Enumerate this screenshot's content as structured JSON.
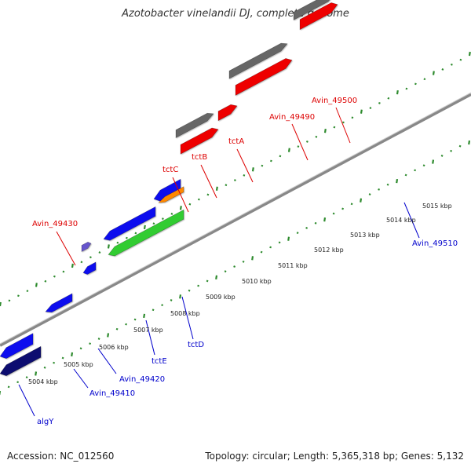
{
  "title": "Azotobacter vinelandii DJ, complete genome",
  "footer": {
    "accession": "Accession: NC_012560",
    "summary": "Topology: circular; Length: 5,365,318 bp; Genes: 5,132"
  },
  "colors": {
    "backbone": "#888888",
    "tick": "#2e8b2e",
    "label_red": "#dd0000",
    "label_blue": "#0000cc",
    "coord_text": "#222222"
  },
  "coordinate_labels": [
    "5004 kbp",
    "5005 kbp",
    "5006 kbp",
    "5007 kbp",
    "5008 kbp",
    "5009 kbp",
    "5010 kbp",
    "5011 kbp",
    "5012 kbp",
    "5013 kbp",
    "5014 kbp",
    "5015 kbp"
  ],
  "gene_labels": [
    {
      "id": "algY",
      "text": "algY",
      "color": "blue"
    },
    {
      "id": "Avin_49410",
      "text": "Avin_49410",
      "color": "blue"
    },
    {
      "id": "Avin_49420",
      "text": "Avin_49420",
      "color": "blue"
    },
    {
      "id": "tctE",
      "text": "tctE",
      "color": "blue"
    },
    {
      "id": "tctD",
      "text": "tctD",
      "color": "blue"
    },
    {
      "id": "Avin_49430",
      "text": "Avin_49430",
      "color": "red"
    },
    {
      "id": "tctC",
      "text": "tctC",
      "color": "red"
    },
    {
      "id": "tctB",
      "text": "tctB",
      "color": "red"
    },
    {
      "id": "tctA",
      "text": "tctA",
      "color": "red"
    },
    {
      "id": "Avin_49490",
      "text": "Avin_49490",
      "color": "red"
    },
    {
      "id": "Avin_49500",
      "text": "Avin_49500",
      "color": "red"
    },
    {
      "id": "Avin_49510",
      "text": "Avin_49510",
      "color": "blue"
    }
  ],
  "features": [
    {
      "id": "f1",
      "color": "#1010ee",
      "strand": "reverse"
    },
    {
      "id": "f2",
      "color": "#101070",
      "strand": "reverse"
    },
    {
      "id": "f3",
      "color": "#1010ee",
      "strand": "reverse"
    },
    {
      "id": "f4",
      "color": "#1010ee",
      "strand": "reverse"
    },
    {
      "id": "f5",
      "color": "#1010ee",
      "strand": "reverse"
    },
    {
      "id": "f6",
      "color": "#1010ee",
      "strand": "reverse"
    },
    {
      "id": "f7",
      "color": "#33cc33",
      "strand": "reverse"
    },
    {
      "id": "f8",
      "color": "#ff8800",
      "strand": "reverse"
    },
    {
      "id": "f9",
      "color": "#ee0000",
      "strand": "forward"
    },
    {
      "id": "f10",
      "color": "#666666",
      "strand": "forward"
    },
    {
      "id": "f11",
      "color": "#ee0000",
      "strand": "forward"
    },
    {
      "id": "f12",
      "color": "#ee0000",
      "strand": "forward"
    },
    {
      "id": "f13",
      "color": "#666666",
      "strand": "forward"
    },
    {
      "id": "f14",
      "color": "#ee0000",
      "strand": "forward"
    },
    {
      "id": "f15",
      "color": "#666666",
      "strand": "forward"
    },
    {
      "id": "f16",
      "color": "#ee0000",
      "strand": "forward"
    },
    {
      "id": "f17",
      "color": "#bbbbbb",
      "strand": "forward"
    },
    {
      "id": "f18",
      "color": "#ee0000",
      "strand": "forward"
    },
    {
      "id": "f19",
      "color": "#1010ee",
      "strand": "reverse"
    },
    {
      "id": "f20",
      "color": "#4477bb",
      "strand": "reverse"
    },
    {
      "id": "f21",
      "color": "#1010ee",
      "strand": "reverse"
    },
    {
      "id": "f22",
      "color": "#6655cc",
      "strand": "reverse"
    }
  ]
}
